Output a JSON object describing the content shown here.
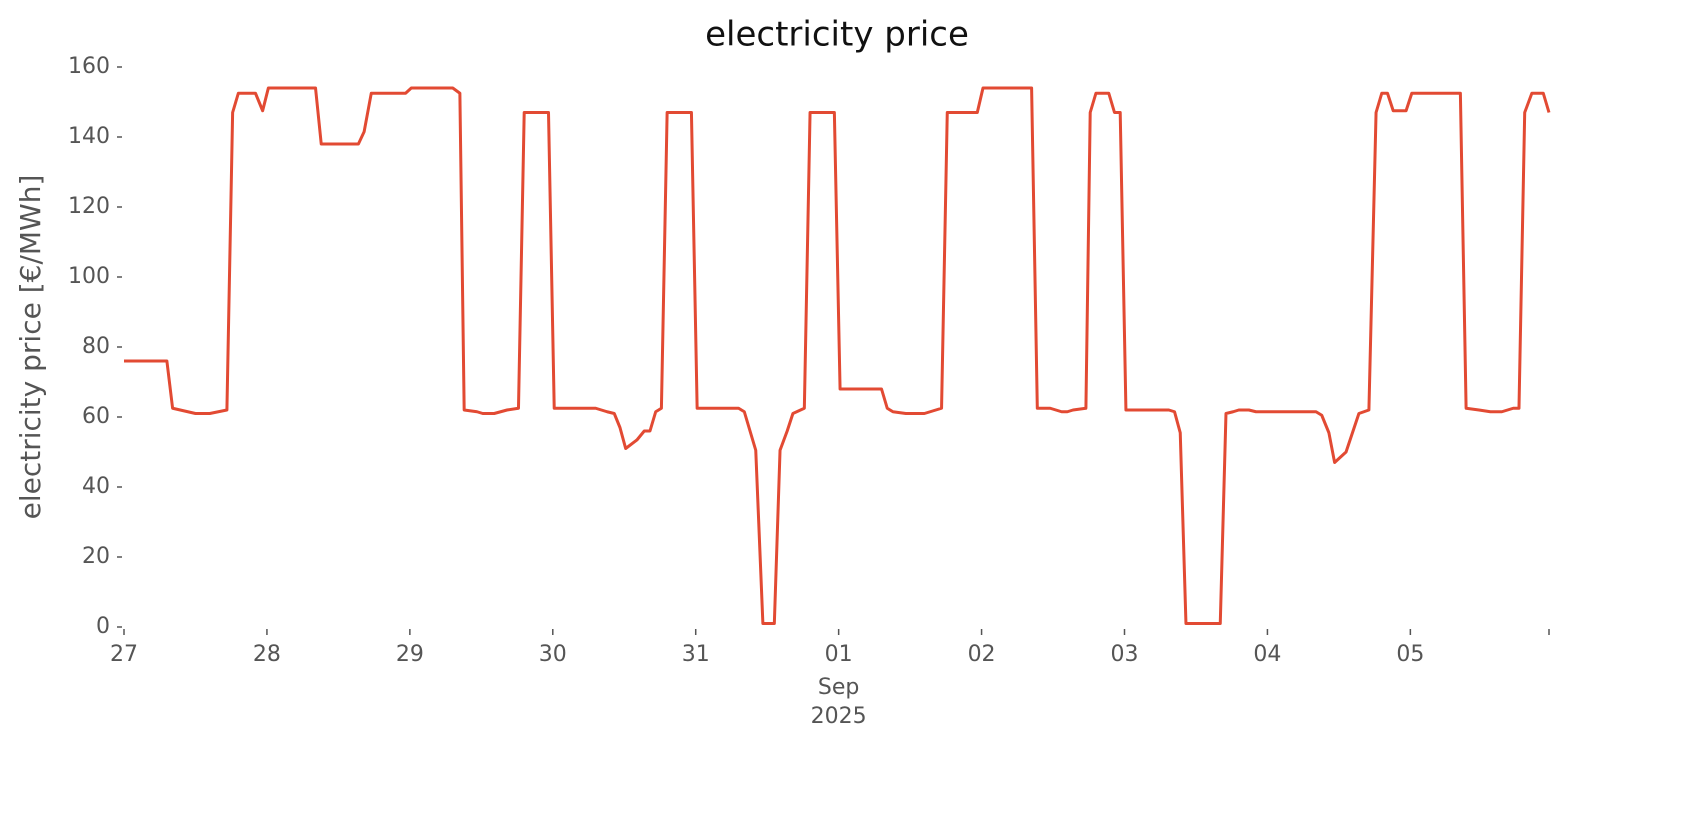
{
  "chart_data": {
    "type": "line",
    "title": "electricity price",
    "y_label": "electricity price [€/MWh]",
    "color": "#e24a33",
    "grid": false,
    "xlim": [
      0,
      9.97
    ],
    "ylim": [
      0,
      160
    ],
    "yticks": [
      0,
      20,
      40,
      60,
      80,
      100,
      120,
      140,
      160
    ],
    "xticks": [
      {
        "value": 0,
        "label": "27"
      },
      {
        "value": 1,
        "label": "28"
      },
      {
        "value": 2,
        "label": "29"
      },
      {
        "value": 3,
        "label": "30"
      },
      {
        "value": 4,
        "label": "31"
      },
      {
        "value": 5,
        "label": "01"
      },
      {
        "value": 6,
        "label": "02"
      },
      {
        "value": 7,
        "label": "03"
      },
      {
        "value": 8,
        "label": "04"
      },
      {
        "value": 9,
        "label": "05"
      },
      {
        "value": 9.97,
        "label": null
      }
    ],
    "annotations": [
      {
        "text": "Sep",
        "x": 5
      },
      {
        "text": "2025",
        "x": 5
      }
    ],
    "x": [
      0,
      0.3,
      0.34,
      0.5,
      0.6,
      0.72,
      0.76,
      0.8,
      0.92,
      0.97,
      1.01,
      1.34,
      1.38,
      1.64,
      1.68,
      1.73,
      1.97,
      2.01,
      2.3,
      2.35,
      2.38,
      2.47,
      2.51,
      2.59,
      2.68,
      2.76,
      2.8,
      2.97,
      3.01,
      3.3,
      3.38,
      3.43,
      3.47,
      3.51,
      3.59,
      3.64,
      3.68,
      3.72,
      3.76,
      3.8,
      3.97,
      4.01,
      4.3,
      4.34,
      4.42,
      4.47,
      4.55,
      4.59,
      4.64,
      4.68,
      4.76,
      4.8,
      4.97,
      5.01,
      5.3,
      5.34,
      5.38,
      5.47,
      5.6,
      5.64,
      5.72,
      5.76,
      5.97,
      6.01,
      6.35,
      6.39,
      6.48,
      6.56,
      6.6,
      6.64,
      6.73,
      6.76,
      6.8,
      6.89,
      6.93,
      6.97,
      7.01,
      7.31,
      7.35,
      7.39,
      7.43,
      7.62,
      7.67,
      7.71,
      7.76,
      7.8,
      7.87,
      7.92,
      8.34,
      8.38,
      8.43,
      8.47,
      8.55,
      8.64,
      8.71,
      8.76,
      8.8,
      8.84,
      8.88,
      8.97,
      9.01,
      9.35,
      9.39,
      9.48,
      9.56,
      9.64,
      9.72,
      9.76,
      9.8,
      9.85,
      9.93,
      9.97
    ],
    "values": [
      76,
      76,
      62.5,
      61,
      61,
      62,
      147,
      152.5,
      152.5,
      147.5,
      154,
      154,
      138,
      138,
      141.5,
      152.5,
      152.5,
      154,
      154,
      152.5,
      62,
      61.5,
      61,
      61,
      62,
      62.5,
      147,
      147,
      62.5,
      62.5,
      61.5,
      61,
      57,
      51,
      53.5,
      56,
      56,
      61.5,
      62.5,
      147,
      147,
      62.5,
      62.5,
      61.5,
      50.5,
      1,
      1,
      50.5,
      56,
      61,
      62.5,
      147,
      147,
      68,
      68,
      62.5,
      61.5,
      61,
      61,
      61.5,
      62.5,
      147,
      147,
      154,
      154,
      62.5,
      62.5,
      61.5,
      61.5,
      62,
      62.5,
      147,
      152.5,
      152.5,
      147,
      147,
      62,
      62,
      61.5,
      55.5,
      1,
      1,
      1,
      61,
      61.5,
      62,
      62,
      61.5,
      61.5,
      60.5,
      55.5,
      47,
      50,
      61,
      62,
      147,
      152.5,
      152.5,
      147.5,
      147.5,
      152.5,
      152.5,
      62.5,
      62,
      61.5,
      61.5,
      62.5,
      62.5,
      147,
      152.5,
      152.5,
      147
    ]
  }
}
